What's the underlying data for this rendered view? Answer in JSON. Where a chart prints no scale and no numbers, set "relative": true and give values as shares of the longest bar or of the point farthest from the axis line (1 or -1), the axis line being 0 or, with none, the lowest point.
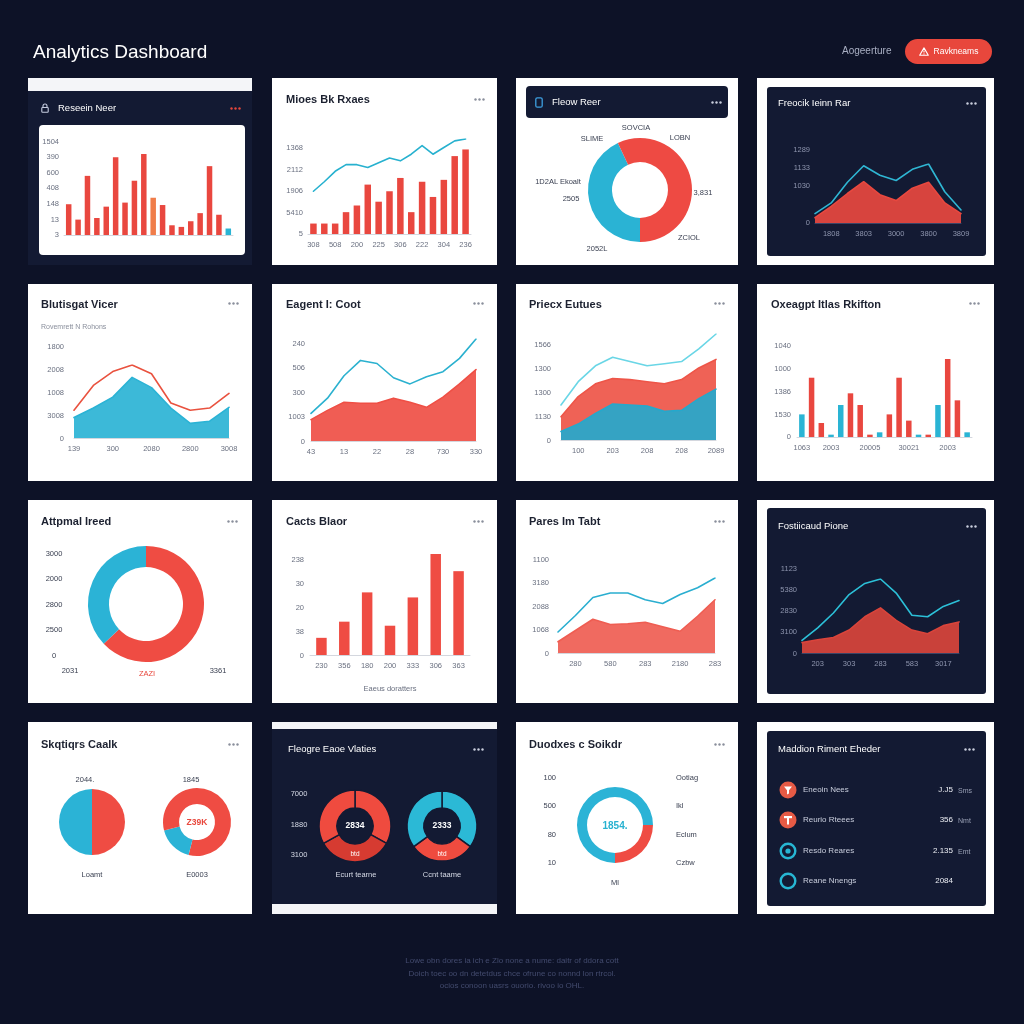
{
  "chart_data": [
    {
      "type": "other",
      "title": "Analytics Dashboard",
      "annotations": [
        "Aogeerture",
        "Ravkneams"
      ]
    },
    {
      "type": "bar",
      "title": "Reseein Neer",
      "relative": true,
      "categories": [
        null,
        null,
        null,
        null,
        null,
        null,
        null,
        null,
        null,
        null,
        null,
        null,
        null,
        null,
        null,
        null,
        null,
        null
      ],
      "values": [
        0.38,
        0.19,
        0.73,
        0.21,
        0.35,
        0.96,
        0.4,
        0.67,
        1,
        0.46,
        0.37,
        0.12,
        0.1,
        0.17,
        0.27,
        0.85,
        0.25,
        0.08
      ],
      "colors": [
        "#e9473f",
        "#e9473f",
        "#e9473f",
        "#e9473f",
        "#e9473f",
        "#e9473f",
        "#e9473f",
        "#e9473f",
        "#e9473f",
        "#f07d4a",
        "#e9473f",
        "#e9473f",
        "#e9473f",
        "#e9473f",
        "#e9473f",
        "#e9473f",
        "#e9473f",
        "#2ab4d4"
      ],
      "annotations": [
        "1504",
        "390",
        "600",
        "408",
        "148",
        "13",
        "3"
      ]
    },
    {
      "type": "bar",
      "title": "Mioes Bk Rxaes",
      "relative": true,
      "categories": [
        "308",
        null,
        "508",
        null,
        "200",
        null,
        "225",
        null,
        "306",
        null,
        "222",
        null,
        "304",
        null,
        "236"
      ],
      "series": [
        {
          "type": "bar",
          "color": "#e9473f",
          "values": [
            0.11,
            0.11,
            0.11,
            0.23,
            0.3,
            0.52,
            0.34,
            0.45,
            0.59,
            0.23,
            0.55,
            0.39,
            0.57,
            0.82,
            0.89
          ]
        },
        {
          "type": "line",
          "color": "#27b1cf",
          "values": [
            0.45,
            0.55,
            0.66,
            0.73,
            0.73,
            0.7,
            0.75,
            0.8,
            0.77,
            0.84,
            0.93,
            0.84,
            0.91,
            0.98,
            1
          ]
        }
      ],
      "annotations": [
        "1368",
        "2112",
        "1906",
        "5410",
        "5"
      ]
    },
    {
      "type": "donut",
      "title": "Fleow Reer",
      "values": [
        50,
        43,
        7
      ],
      "colors": [
        "#ee4a43",
        "#2ab3d4",
        "#ee4a43"
      ],
      "annotations": [
        "SLIME",
        "SOVCIA",
        "LOBN",
        "1D2AL Ekoalt",
        "2505",
        "3,831",
        "ZCIOL",
        "2052L"
      ]
    },
    {
      "type": "area",
      "title": "Freocik Ieinn Rar",
      "relative": true,
      "categories": [
        null,
        "1808",
        null,
        "3803",
        null,
        "3000",
        null,
        "3800",
        null,
        "3809"
      ],
      "series": [
        {
          "type": "area",
          "color": "#e8483f",
          "values": [
            0.09,
            0.28,
            0.5,
            0.7,
            0.48,
            0.38,
            0.59,
            0.69,
            0.34,
            0.16
          ]
        },
        {
          "type": "line",
          "color": "#2fb6d3",
          "values": [
            0.16,
            0.34,
            0.69,
            0.97,
            0.81,
            0.72,
            0.91,
            1,
            0.53,
            0.22
          ]
        }
      ],
      "annotations": [
        "1289",
        "1133",
        "1030",
        "0"
      ]
    },
    {
      "type": "area",
      "title": "Blutisgat Vicer",
      "subtitle": "Rovemrett N Rohons",
      "relative": true,
      "categories": [
        "139",
        null,
        "300",
        null,
        "2080",
        null,
        "2800",
        null,
        "3008"
      ],
      "series": [
        {
          "type": "area",
          "color": "#2bb3d5",
          "values": [
            0.28,
            0.41,
            0.56,
            0.83,
            0.69,
            0.41,
            0.2,
            0.23,
            0.42
          ]
        },
        {
          "type": "line",
          "color": "#e9523f",
          "values": [
            0.38,
            0.72,
            0.91,
            1,
            0.88,
            0.48,
            0.38,
            0.41,
            0.61
          ]
        }
      ],
      "annotations": [
        "1800",
        "2008",
        "1008",
        "3008",
        "0"
      ]
    },
    {
      "type": "area",
      "title": "Eagent I: Coot",
      "relative": true,
      "categories": [
        "43",
        null,
        "13",
        null,
        "22",
        null,
        "28",
        null,
        "730",
        null,
        "330"
      ],
      "series": [
        {
          "type": "area",
          "color": "#ef4f45",
          "values": [
            0.21,
            0.3,
            0.38,
            0.37,
            0.37,
            0.42,
            0.38,
            0.33,
            0.43,
            0.56,
            0.7
          ]
        },
        {
          "type": "line",
          "color": "#2bb1cf",
          "values": [
            0.27,
            0.42,
            0.64,
            0.79,
            0.76,
            0.62,
            0.56,
            0.63,
            0.68,
            0.81,
            1
          ]
        }
      ],
      "annotations": [
        "240",
        "506",
        "300",
        "1003",
        "0"
      ]
    },
    {
      "type": "area",
      "title": "Priecx Eutues",
      "relative": true,
      "categories": [
        null,
        "100",
        null,
        "203",
        null,
        "208",
        null,
        "208",
        null,
        "2089"
      ],
      "series": [
        {
          "type": "area",
          "color": "#ee5548",
          "values": [
            0.22,
            0.41,
            0.53,
            0.58,
            0.57,
            0.55,
            0.53,
            0.57,
            0.68,
            0.76
          ]
        },
        {
          "type": "area",
          "color": "#25a8cc",
          "values": [
            0.08,
            0.15,
            0.25,
            0.34,
            0.33,
            0.32,
            0.27,
            0.28,
            0.39,
            0.48
          ]
        },
        {
          "type": "line",
          "color": "#6ad6e6",
          "values": [
            0.33,
            0.55,
            0.7,
            0.78,
            0.74,
            0.7,
            0.72,
            0.74,
            0.86,
            1
          ]
        }
      ],
      "annotations": [
        "1566",
        "1300",
        "1300",
        "1130",
        "0"
      ]
    },
    {
      "type": "bar",
      "title": "Oxeagpt Itlas Rkifton",
      "relative": true,
      "categories": [
        "1063",
        null,
        null,
        "2003",
        null,
        null,
        null,
        "20005",
        null,
        null,
        null,
        "30021",
        null,
        null,
        null,
        "2003",
        null,
        null
      ],
      "values": [
        0.29,
        0.76,
        0.18,
        0.03,
        0.41,
        0.56,
        0.41,
        0.03,
        0.06,
        0.29,
        0.76,
        0.21,
        0.03,
        0.03,
        0.41,
        1,
        0.47,
        0.06
      ],
      "colors": [
        "#2ab4d4",
        "#e9473f",
        "#e9473f",
        "#2ab4d4",
        "#2ab4d4",
        "#e9473f",
        "#e9473f",
        "#e9473f",
        "#2ab4d4",
        "#e9473f",
        "#e9473f",
        "#e9473f",
        "#2ab4d4",
        "#e9473f",
        "#2ab4d4",
        "#e9473f",
        "#e9473f",
        "#2ab4d4"
      ],
      "annotations": [
        "1040",
        "1000",
        "1386",
        "1530",
        "0"
      ]
    },
    {
      "type": "donut",
      "title": "Attpmal Ireed",
      "values": [
        63,
        37
      ],
      "colors": [
        "#ef4c43",
        "#2bb3d6"
      ],
      "annotations": [
        "3000",
        "2000",
        "2800",
        "2500",
        "0",
        "2031",
        "ZAZI",
        "3361"
      ]
    },
    {
      "type": "bar",
      "title": "Cacts Blaor",
      "xlabel": "Eaeus doratters",
      "relative": true,
      "categories": [
        "230",
        "356",
        "180",
        "200",
        "333",
        "306",
        "363"
      ],
      "values": [
        0.17,
        0.33,
        0.62,
        0.29,
        0.57,
        1,
        0.83
      ],
      "color": "#ef4c43",
      "annotations": [
        "238",
        "30",
        "20",
        "38",
        "0"
      ]
    },
    {
      "type": "area",
      "title": "Pares Im Tabt",
      "relative": true,
      "categories": [
        null,
        "280",
        null,
        "580",
        null,
        "283",
        null,
        "2180",
        null,
        "283"
      ],
      "series": [
        {
          "type": "area",
          "color": "#ef5d52",
          "values": [
            0.15,
            0.3,
            0.45,
            0.38,
            0.39,
            0.41,
            0.35,
            0.29,
            0.49,
            0.71
          ]
        },
        {
          "type": "line",
          "color": "#2aaed0",
          "values": [
            0.28,
            0.5,
            0.74,
            0.8,
            0.8,
            0.71,
            0.66,
            0.78,
            0.87,
            1
          ]
        }
      ],
      "annotations": [
        "1100",
        "3180",
        "2088",
        "1068",
        "0"
      ]
    },
    {
      "type": "area",
      "title": "Fostiicaud Pione",
      "relative": true,
      "categories": [
        null,
        "203",
        null,
        "303",
        null,
        "283",
        null,
        "583",
        null,
        "3017",
        null
      ],
      "series": [
        {
          "type": "area",
          "color": "#d9443b",
          "values": [
            0.14,
            0.18,
            0.21,
            0.31,
            0.49,
            0.61,
            0.44,
            0.31,
            0.26,
            0.37,
            0.42
          ]
        },
        {
          "type": "line",
          "color": "#2cc0d8",
          "values": [
            0.17,
            0.34,
            0.54,
            0.79,
            0.94,
            1,
            0.81,
            0.51,
            0.49,
            0.63,
            0.71
          ]
        }
      ],
      "annotations": [
        "1123",
        "5380",
        "2830",
        "3100",
        "0"
      ]
    },
    {
      "type": "pie",
      "title": "Skqtiqrs Caalk",
      "values": [
        50,
        50
      ],
      "colors": [
        "#ef4c43",
        "#2bb3d6"
      ],
      "annotations": [
        "2044.",
        "Loamt"
      ]
    },
    {
      "type": "donut",
      "values": [
        54,
        17,
        29
      ],
      "colors": [
        "#ef4c43",
        "#2bb3d6",
        "#ef4c43"
      ],
      "annotations": [
        "1845",
        "Z39K",
        "E0003"
      ]
    },
    {
      "type": "donut",
      "title": "Fleogre Eaoe Vlaties",
      "values": [
        33,
        34,
        33
      ],
      "colors": [
        "#ef4b3f",
        "#d63b31",
        "#ef4b3f"
      ],
      "annotations": [
        "7000",
        "1880",
        "3100",
        "2834",
        "btd",
        "Ecurt tearne"
      ]
    },
    {
      "type": "donut",
      "values": [
        35,
        30,
        35
      ],
      "colors": [
        "#2bb9d6",
        "#ef4b3f",
        "#2bb9d6"
      ],
      "annotations": [
        "2333",
        "btd",
        "Ccnt taame"
      ]
    },
    {
      "type": "donut",
      "title": "Duodxes c Soikdr",
      "values": [
        25,
        25,
        50
      ],
      "colors": [
        "#2bb3d6",
        "#ef4c43",
        "#2bb3d6"
      ],
      "annotations": [
        "100",
        "500",
        "80",
        "10",
        "Ootiag",
        "Ikl",
        "Eclum",
        "Czbw",
        "1854.",
        "Ml"
      ]
    },
    {
      "type": "other",
      "title": "Maddion Riment Eheder",
      "annotations": [
        "Eneoin Nees",
        "J.J5",
        "Sms",
        "Reurio Rteees",
        "356",
        "Nmt",
        "Resdo Reares",
        "2.135",
        "Emt",
        "Reane Nnengs",
        "2084"
      ]
    },
    {
      "type": "other",
      "annotations": [
        "Lowe obn dores ia ich e Zlo none a nume: daitr of ddora cott",
        "Doich toec oo dn detetdus chce ofrune co nonnd lon rtrcol.",
        "ocios conoon uasrs ouorio. rivoo io OHL."
      ]
    }
  ]
}
